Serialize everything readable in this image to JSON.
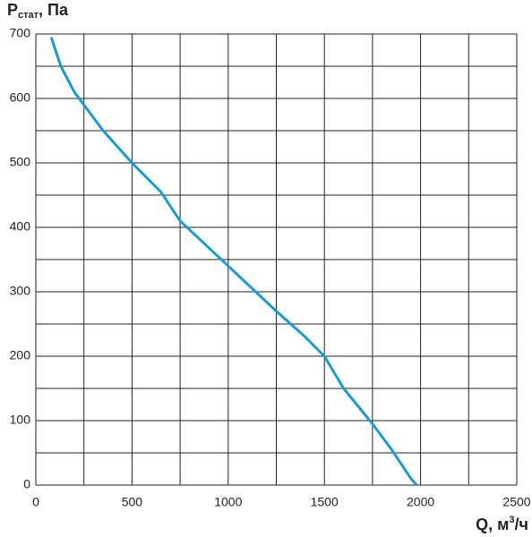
{
  "chart_data": {
    "type": "line",
    "ylabel": {
      "main": "P",
      "sub": "стат",
      "rest": ", Па"
    },
    "xlabel": {
      "main": "Q, м",
      "sup": "3",
      "rest": "/ч"
    },
    "series": [
      {
        "color": "#1a9ad6",
        "x": [
          80,
          130,
          200,
          250,
          350,
          500,
          650,
          750,
          1000,
          1250,
          1400,
          1500,
          1550,
          1600,
          1750,
          1850,
          1950,
          1980
        ],
        "values": [
          695,
          650,
          610,
          590,
          550,
          500,
          455,
          410,
          340,
          270,
          230,
          200,
          175,
          150,
          95,
          55,
          10,
          0
        ]
      }
    ],
    "xlim": [
      0,
      2500
    ],
    "ylim": [
      0,
      700
    ],
    "xticks": [
      0,
      500,
      1000,
      1500,
      2000,
      2500
    ],
    "yticks": [
      0,
      100,
      200,
      300,
      400,
      500,
      600,
      700
    ],
    "x_minor_ticks": [
      250,
      750,
      1250,
      1750,
      2250
    ],
    "y_minor_ticks": [
      50,
      150,
      250,
      350,
      450,
      550,
      650
    ],
    "grid": true
  }
}
